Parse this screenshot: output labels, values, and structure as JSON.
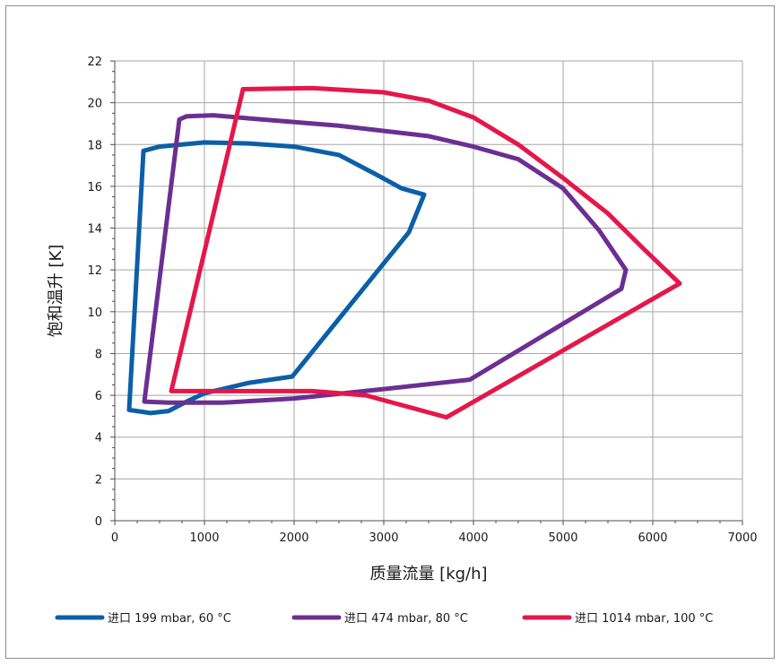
{
  "chart_data": {
    "type": "line",
    "xlabel": "质量流量 [kg/h]",
    "ylabel": "饱和温升 [K]",
    "xlim": [
      0,
      7000
    ],
    "ylim": [
      0,
      22
    ],
    "xticks": [
      0,
      1000,
      2000,
      3000,
      4000,
      5000,
      6000,
      7000
    ],
    "yticks": [
      0,
      2,
      4,
      6,
      8,
      10,
      12,
      14,
      16,
      18,
      20,
      22
    ],
    "grid": true,
    "legend_position": "bottom",
    "series": [
      {
        "name": "进口 199 mbar, 60 °C",
        "color": "#0a5fa8",
        "points": [
          [
            160,
            5.3
          ],
          [
            320,
            17.7
          ],
          [
            500,
            17.9
          ],
          [
            1000,
            18.1
          ],
          [
            1500,
            18.05
          ],
          [
            2000,
            17.9
          ],
          [
            2500,
            17.5
          ],
          [
            2900,
            16.6
          ],
          [
            3200,
            15.9
          ],
          [
            3450,
            15.6
          ],
          [
            3280,
            13.8
          ],
          [
            1980,
            6.9
          ],
          [
            1500,
            6.6
          ],
          [
            1000,
            6.1
          ],
          [
            800,
            5.7
          ],
          [
            600,
            5.25
          ],
          [
            400,
            5.15
          ],
          [
            160,
            5.3
          ]
        ]
      },
      {
        "name": "进口 474 mbar, 80 °C",
        "color": "#6b2f92",
        "points": [
          [
            330,
            5.7
          ],
          [
            720,
            19.2
          ],
          [
            800,
            19.35
          ],
          [
            1100,
            19.4
          ],
          [
            1500,
            19.25
          ],
          [
            2500,
            18.9
          ],
          [
            3500,
            18.4
          ],
          [
            4000,
            17.9
          ],
          [
            4500,
            17.3
          ],
          [
            5000,
            15.9
          ],
          [
            5400,
            13.9
          ],
          [
            5700,
            12.0
          ],
          [
            5650,
            11.1
          ],
          [
            3960,
            6.75
          ],
          [
            3000,
            6.3
          ],
          [
            2000,
            5.85
          ],
          [
            1200,
            5.65
          ],
          [
            600,
            5.65
          ],
          [
            330,
            5.7
          ]
        ]
      },
      {
        "name": "进口 1014 mbar, 100 °C",
        "color": "#e5174a",
        "points": [
          [
            630,
            6.2
          ],
          [
            1430,
            20.65
          ],
          [
            2200,
            20.7
          ],
          [
            3000,
            20.5
          ],
          [
            3500,
            20.1
          ],
          [
            4000,
            19.3
          ],
          [
            4500,
            18.0
          ],
          [
            5000,
            16.4
          ],
          [
            5500,
            14.7
          ],
          [
            5900,
            13.0
          ],
          [
            6300,
            11.35
          ],
          [
            3700,
            4.95
          ],
          [
            2800,
            6.0
          ],
          [
            2200,
            6.2
          ],
          [
            1500,
            6.2
          ],
          [
            630,
            6.2
          ]
        ]
      }
    ]
  }
}
